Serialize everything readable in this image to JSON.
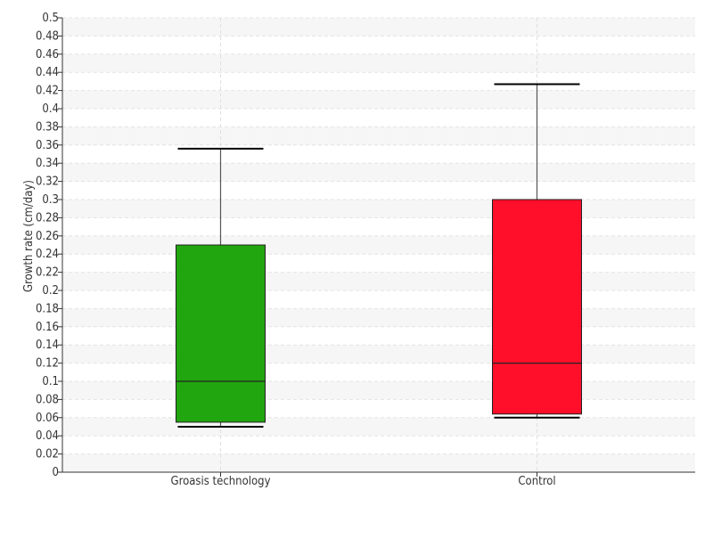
{
  "chart_data": {
    "type": "box",
    "ylabel": "Growth rate (cm/day)",
    "xlabel": "",
    "ylim": [
      0,
      0.5
    ],
    "ytick_step": 0.02,
    "yticks": [
      "0",
      "0.02",
      "0.04",
      "0.06",
      "0.08",
      "0.1",
      "0.12",
      "0.14",
      "0.16",
      "0.18",
      "0.2",
      "0.22",
      "0.24",
      "0.26",
      "0.28",
      "0.3",
      "0.32",
      "0.34",
      "0.36",
      "0.38",
      "0.4",
      "0.42",
      "0.44",
      "0.46",
      "0.48",
      "0.5"
    ],
    "grid": true,
    "categories": [
      "Groasis technology",
      "Control"
    ],
    "boxes": [
      {
        "category": "Groasis technology",
        "whisker_low": 0.05,
        "q1": 0.055,
        "median": 0.1,
        "q3": 0.25,
        "whisker_high": 0.356,
        "color": "#22a60f"
      },
      {
        "category": "Control",
        "whisker_low": 0.06,
        "q1": 0.064,
        "median": 0.12,
        "q3": 0.3,
        "whisker_high": 0.427,
        "color": "#ff0f2a"
      }
    ]
  }
}
